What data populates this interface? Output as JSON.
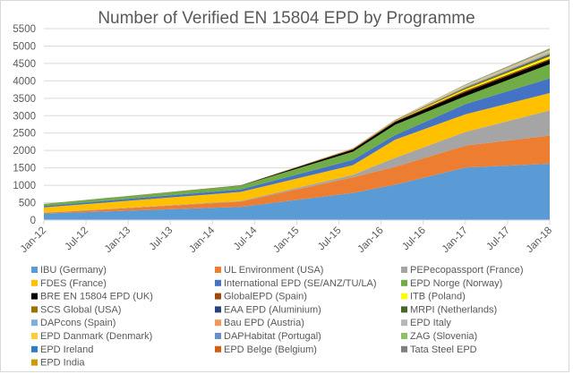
{
  "chart_data": {
    "type": "area",
    "stacked": true,
    "title": "Number of Verified EN 15804 EPD by Programme",
    "xlabel": "",
    "ylabel": "",
    "ylim": [
      0,
      5500
    ],
    "yticks": [
      0,
      500,
      1000,
      1500,
      2000,
      2500,
      3000,
      3500,
      4000,
      4500,
      5000,
      5500
    ],
    "xlim": [
      "2012-01",
      "2018-01"
    ],
    "xtick_labels": [
      "Jan-12",
      "Jul-12",
      "Jan-13",
      "Jul-13",
      "Jan-14",
      "Jul-14",
      "Jan-15",
      "Jul-15",
      "Jan-16",
      "Jul-16",
      "Jan-17",
      "Jul-17",
      "Jan-18"
    ],
    "grid": "horizontal",
    "legend_position": "bottom",
    "x": [
      "2012-01",
      "2014-05",
      "2015-09",
      "2016-03",
      "2017-01",
      "2018-01"
    ],
    "series": [
      {
        "name": "IBU (Germany)",
        "color": "#5B9BD5",
        "values": [
          190,
          380,
          780,
          1020,
          1510,
          1620
        ]
      },
      {
        "name": "UL Environment (USA)",
        "color": "#ED7D31",
        "values": [
          20,
          150,
          450,
          510,
          630,
          810
        ]
      },
      {
        "name": "PEPecopassport (France)",
        "color": "#A5A5A5",
        "values": [
          5,
          20,
          70,
          260,
          390,
          720
        ]
      },
      {
        "name": "FDES (France)",
        "color": "#FFC000",
        "values": [
          150,
          260,
          280,
          520,
          510,
          500
        ]
      },
      {
        "name": "International EPD (SE/ANZ/TU/LA)",
        "color": "#4472C4",
        "values": [
          40,
          70,
          150,
          130,
          290,
          420
        ]
      },
      {
        "name": "EPD Norge (Norway)",
        "color": "#70AD47",
        "values": [
          60,
          110,
          235,
          300,
          230,
          410
        ]
      },
      {
        "name": "BRE EN 15804 EPD (UK)",
        "color": "#000000",
        "values": [
          0,
          5,
          60,
          80,
          120,
          120
        ]
      },
      {
        "name": "GlobalEPD (Spain)",
        "color": "#9E480E",
        "values": [
          0,
          5,
          20,
          20,
          40,
          40
        ]
      },
      {
        "name": "ITB (Poland)",
        "color": "#FFFF00",
        "values": [
          0,
          0,
          5,
          10,
          40,
          60
        ]
      },
      {
        "name": "SCS Global (USA)",
        "color": "#997300",
        "values": [
          0,
          0,
          5,
          10,
          30,
          30
        ]
      },
      {
        "name": "EAA EPD (Aluminium)",
        "color": "#264478",
        "values": [
          0,
          0,
          0,
          5,
          10,
          20
        ]
      },
      {
        "name": "MRPI (Netherlands)",
        "color": "#43682B",
        "values": [
          0,
          0,
          0,
          5,
          10,
          20
        ]
      },
      {
        "name": "DAPcons (Spain)",
        "color": "#7CAFDD",
        "values": [
          0,
          0,
          5,
          5,
          15,
          30
        ]
      },
      {
        "name": "Bau EPD (Austria)",
        "color": "#F1975A",
        "values": [
          0,
          0,
          5,
          5,
          10,
          15
        ]
      },
      {
        "name": "EPD Italy",
        "color": "#B7B7B7",
        "values": [
          0,
          0,
          0,
          5,
          20,
          30
        ]
      },
      {
        "name": "EPD Danmark (Denmark)",
        "color": "#FFCD33",
        "values": [
          0,
          0,
          0,
          5,
          20,
          30
        ]
      },
      {
        "name": "DAPHabitat (Portugal)",
        "color": "#698ED0",
        "values": [
          0,
          0,
          0,
          0,
          5,
          10
        ]
      },
      {
        "name": "ZAG (Slovenia)",
        "color": "#8CC168",
        "values": [
          0,
          0,
          0,
          0,
          5,
          10
        ]
      },
      {
        "name": "EPD Ireland",
        "color": "#327DC2",
        "values": [
          0,
          0,
          0,
          0,
          5,
          15
        ]
      },
      {
        "name": "EPD Belge (Belgium)",
        "color": "#D26012",
        "values": [
          0,
          0,
          0,
          0,
          5,
          10
        ]
      },
      {
        "name": "Tata Steel EPD",
        "color": "#7F7F7F",
        "values": [
          0,
          0,
          0,
          0,
          5,
          10
        ]
      },
      {
        "name": "EPD India",
        "color": "#CC9A00",
        "values": [
          0,
          0,
          0,
          0,
          0,
          5
        ]
      }
    ]
  }
}
